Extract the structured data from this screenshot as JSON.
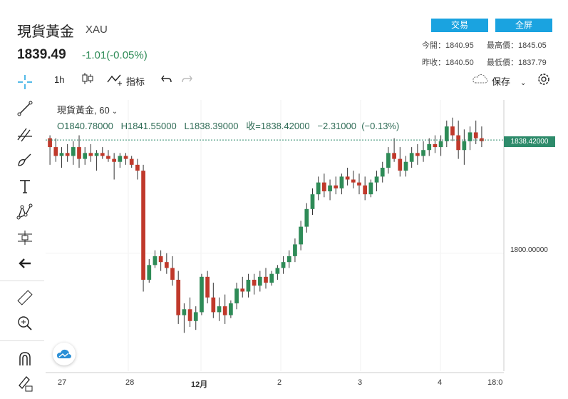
{
  "header": {
    "title": "現貨黃金",
    "symbol": "XAU",
    "price": "1839.49",
    "change": "-1.01(-0.05%)",
    "trade_button": "交易",
    "fullscreen_button": "全屏",
    "stats": {
      "open_label": "今開：",
      "open_value": "1840.95",
      "high_label": "最高價：",
      "high_value": "1845.05",
      "prev_label": "昨收：",
      "prev_value": "1840.50",
      "low_label": "最低價：",
      "low_value": "1837.79"
    }
  },
  "toolbar": {
    "interval": "1h",
    "indicators": "指标",
    "save": "保存"
  },
  "legend": {
    "line1": "現貨黃金, 60",
    "line2": "O1840.78000   H1841.55000   L1838.39000   收=1838.42000   −2.31000  (−0.13%)"
  },
  "colors": {
    "up": "#2e8b57",
    "down": "#c0392b",
    "accent": "#1aa3e0",
    "price_tag": "#2e8b6b"
  },
  "icons": [
    "crosshair-icon",
    "trend-line-icon",
    "fib-icon",
    "brush-icon",
    "text-icon",
    "pattern-icon",
    "measure-icon",
    "back-arrow-icon",
    "ruler-icon",
    "zoom-icon",
    "magnet-icon",
    "lock-pencil-icon",
    "candles-icon",
    "indicator-icon",
    "undo-icon",
    "redo-icon",
    "cloud-icon",
    "gear-icon"
  ],
  "chart_data": {
    "type": "candlestick",
    "y_axis_labels": [
      "1838.42000",
      "1800.00000"
    ],
    "last_price": 1838.42,
    "ylim": [
      1760,
      1852
    ],
    "x_tick_labels": [
      "27",
      "28",
      "12月",
      "2",
      "3",
      "4",
      "18:0"
    ],
    "candles": [
      [
        1839,
        1840,
        1830,
        1836
      ],
      [
        1836,
        1839,
        1831,
        1833
      ],
      [
        1833,
        1836,
        1829,
        1834
      ],
      [
        1834,
        1837,
        1831,
        1833
      ],
      [
        1833,
        1838,
        1830,
        1836
      ],
      [
        1836,
        1840,
        1829,
        1832
      ],
      [
        1832,
        1836,
        1830,
        1834
      ],
      [
        1834,
        1837,
        1831,
        1833
      ],
      [
        1833,
        1835,
        1828,
        1834
      ],
      [
        1834,
        1836,
        1832,
        1833
      ],
      [
        1833,
        1835,
        1831,
        1832
      ],
      [
        1832,
        1834,
        1825,
        1831
      ],
      [
        1831,
        1834,
        1829,
        1833
      ],
      [
        1833,
        1834,
        1830,
        1832
      ],
      [
        1832,
        1833,
        1829,
        1830
      ],
      [
        1830,
        1832,
        1825,
        1828
      ],
      [
        1828,
        1830,
        1787,
        1791
      ],
      [
        1791,
        1798,
        1790,
        1796
      ],
      [
        1796,
        1801,
        1795,
        1799
      ],
      [
        1799,
        1801,
        1794,
        1797
      ],
      [
        1797,
        1800,
        1793,
        1795
      ],
      [
        1795,
        1799,
        1789,
        1791
      ],
      [
        1791,
        1794,
        1776,
        1779
      ],
      [
        1779,
        1783,
        1773,
        1781
      ],
      [
        1781,
        1785,
        1775,
        1777
      ],
      [
        1777,
        1782,
        1774,
        1780
      ],
      [
        1780,
        1793,
        1779,
        1792
      ],
      [
        1792,
        1794,
        1783,
        1785
      ],
      [
        1785,
        1790,
        1778,
        1780
      ],
      [
        1780,
        1785,
        1777,
        1782
      ],
      [
        1782,
        1786,
        1776,
        1779
      ],
      [
        1779,
        1784,
        1778,
        1783
      ],
      [
        1783,
        1790,
        1781,
        1788
      ],
      [
        1788,
        1792,
        1785,
        1787
      ],
      [
        1787,
        1793,
        1785,
        1791
      ],
      [
        1791,
        1793,
        1786,
        1789
      ],
      [
        1789,
        1794,
        1787,
        1792
      ],
      [
        1792,
        1795,
        1788,
        1790
      ],
      [
        1790,
        1794,
        1789,
        1793
      ],
      [
        1793,
        1796,
        1791,
        1795
      ],
      [
        1795,
        1799,
        1793,
        1797
      ],
      [
        1797,
        1801,
        1795,
        1799
      ],
      [
        1799,
        1805,
        1797,
        1803
      ],
      [
        1803,
        1811,
        1801,
        1809
      ],
      [
        1809,
        1817,
        1807,
        1815
      ],
      [
        1815,
        1822,
        1813,
        1820
      ],
      [
        1820,
        1826,
        1818,
        1824
      ],
      [
        1824,
        1827,
        1819,
        1821
      ],
      [
        1821,
        1825,
        1818,
        1823
      ],
      [
        1823,
        1826,
        1820,
        1822
      ],
      [
        1822,
        1827,
        1820,
        1826
      ],
      [
        1826,
        1829,
        1823,
        1825
      ],
      [
        1825,
        1828,
        1822,
        1824
      ],
      [
        1824,
        1827,
        1820,
        1823
      ],
      [
        1823,
        1826,
        1818,
        1820
      ],
      [
        1820,
        1825,
        1819,
        1824
      ],
      [
        1824,
        1828,
        1821,
        1826
      ],
      [
        1826,
        1831,
        1824,
        1829
      ],
      [
        1829,
        1836,
        1827,
        1834
      ],
      [
        1834,
        1839,
        1831,
        1832
      ],
      [
        1832,
        1836,
        1826,
        1828
      ],
      [
        1828,
        1833,
        1826,
        1831
      ],
      [
        1831,
        1836,
        1829,
        1834
      ],
      [
        1834,
        1837,
        1830,
        1833
      ],
      [
        1833,
        1838,
        1831,
        1835
      ],
      [
        1835,
        1839,
        1833,
        1837
      ],
      [
        1837,
        1840,
        1834,
        1836
      ],
      [
        1836,
        1840,
        1833,
        1838
      ],
      [
        1838,
        1845,
        1836,
        1843
      ],
      [
        1843,
        1846,
        1838,
        1840
      ],
      [
        1840,
        1845,
        1832,
        1835
      ],
      [
        1835,
        1842,
        1830,
        1838
      ],
      [
        1838,
        1843,
        1835,
        1841
      ],
      [
        1841,
        1845,
        1837,
        1839
      ],
      [
        1839,
        1843,
        1836,
        1838
      ]
    ]
  }
}
